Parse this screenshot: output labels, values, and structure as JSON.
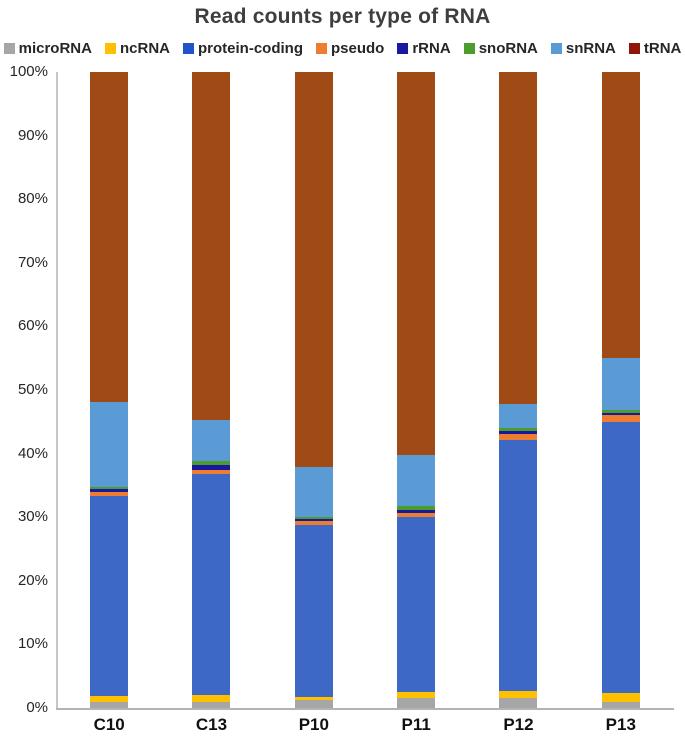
{
  "title": "Read counts per type of RNA",
  "styles": {
    "title_color": "#3e3e3e",
    "axis_line_color": "#c6c6c6",
    "tick_label_color": "#262626",
    "category_label_color": "#111111",
    "background": "#ffffff"
  },
  "chart_data": {
    "type": "bar",
    "variant": "stacked-100-percent-column",
    "title": "Read counts per type of RNA",
    "xlabel": "",
    "ylabel": "",
    "ylim": [
      0,
      100
    ],
    "grid": false,
    "legend_position": "top",
    "y_tick_labels": [
      "100%",
      "90%",
      "80%",
      "70%",
      "60%",
      "50%",
      "40%",
      "30%",
      "20%",
      "10%",
      "0%"
    ],
    "categories": [
      "C10",
      "C13",
      "P10",
      "P11",
      "P12",
      "P13"
    ],
    "series": [
      {
        "name": "microRNA",
        "color": "#a6a6a6",
        "legend_color": "#a6a6a6",
        "values": [
          1.0,
          0.9,
          1.2,
          1.6,
          1.5,
          0.9
        ]
      },
      {
        "name": "ncRNA",
        "color": "#ffc000",
        "legend_color": "#ffc000",
        "values": [
          0.9,
          1.1,
          0.5,
          0.9,
          1.1,
          1.5
        ]
      },
      {
        "name": "protein-coding",
        "color": "#3d68c5",
        "legend_color": "#2154c8",
        "values": [
          31.5,
          34.8,
          27.1,
          27.6,
          39.6,
          42.6
        ]
      },
      {
        "name": "pseudo",
        "color": "#ed7d31",
        "legend_color": "#ed7d31",
        "values": [
          0.6,
          0.7,
          0.6,
          0.5,
          0.9,
          1.0
        ]
      },
      {
        "name": "rRNA",
        "color": "#1a18a0",
        "legend_color": "#1a18a0",
        "values": [
          0.5,
          0.7,
          0.3,
          0.6,
          0.5,
          0.4
        ]
      },
      {
        "name": "snoRNA",
        "color": "#4c9c2e",
        "legend_color": "#4c9c2e",
        "values": [
          0.3,
          0.6,
          0.4,
          0.5,
          0.4,
          0.4
        ]
      },
      {
        "name": "snRNA",
        "color": "#5b9bd5",
        "legend_color": "#5b9bd5",
        "values": [
          13.3,
          6.5,
          7.8,
          8.1,
          3.8,
          8.3
        ]
      },
      {
        "name": "tRNA",
        "color": "#a04b16",
        "legend_color": "#8f150b",
        "values": [
          51.9,
          54.7,
          62.1,
          60.2,
          52.2,
          44.9
        ]
      }
    ]
  }
}
